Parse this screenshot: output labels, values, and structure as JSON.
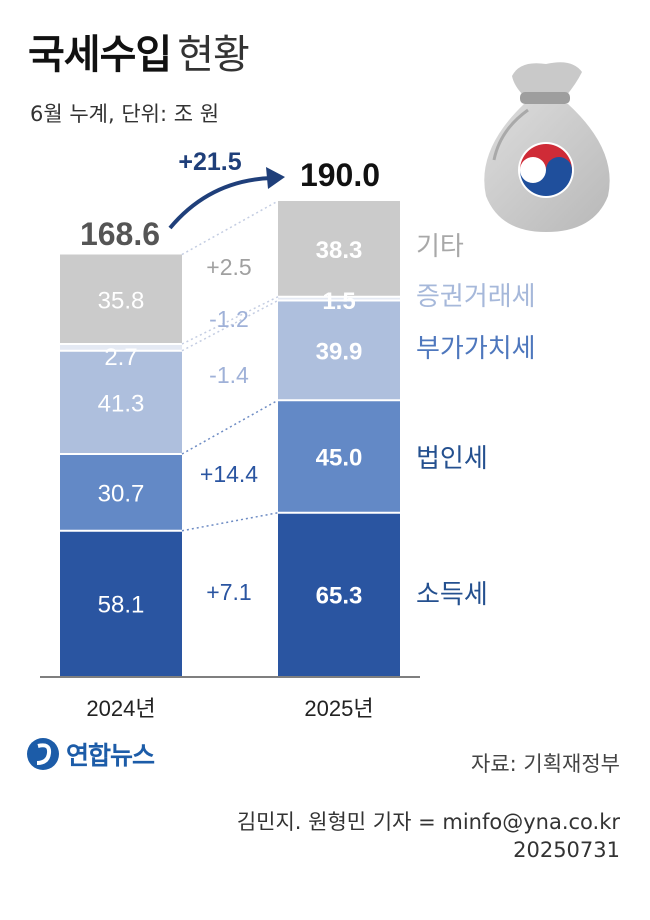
{
  "title": {
    "main": "국세수입",
    "sub": "현황"
  },
  "subtitle": "6월 누계, 단위: 조 원",
  "colors": {
    "기타": "#cbcbcb",
    "증권거래세": "#e4e9f3",
    "부가가치세": "#aebfdd",
    "법인세": "#6389c6",
    "소득세": "#2a55a1"
  },
  "chart_data": {
    "type": "bar",
    "stacked": true,
    "categories": [
      "2024년",
      "2025년"
    ],
    "series": [
      {
        "name": "소득세",
        "values": [
          58.1,
          65.3
        ],
        "change": "+7.1"
      },
      {
        "name": "법인세",
        "values": [
          30.7,
          45.0
        ],
        "change": "+14.4"
      },
      {
        "name": "부가가치세",
        "values": [
          41.3,
          39.9
        ],
        "change": "-1.4"
      },
      {
        "name": "증권거래세",
        "values": [
          2.7,
          1.5
        ],
        "change": "-1.2"
      },
      {
        "name": "기타",
        "values": [
          35.8,
          38.3
        ],
        "change": "+2.5"
      }
    ],
    "value_labels": [
      [
        "58.1",
        "30.7",
        "41.3",
        "2.7",
        "35.8"
      ],
      [
        "65.3",
        "45.0",
        "39.9",
        "1.5",
        "38.3"
      ]
    ],
    "totals": [
      168.6,
      190.0
    ],
    "total_labels": [
      "168.6",
      "190.0"
    ],
    "total_change": "+21.5",
    "legend_placement": "right"
  },
  "footer": {
    "logo": "연합뉴스",
    "source": "자료: 기획재정부",
    "credit": "김민지. 원형민 기자 = minfo@yna.co.kr",
    "date": "20250731"
  }
}
